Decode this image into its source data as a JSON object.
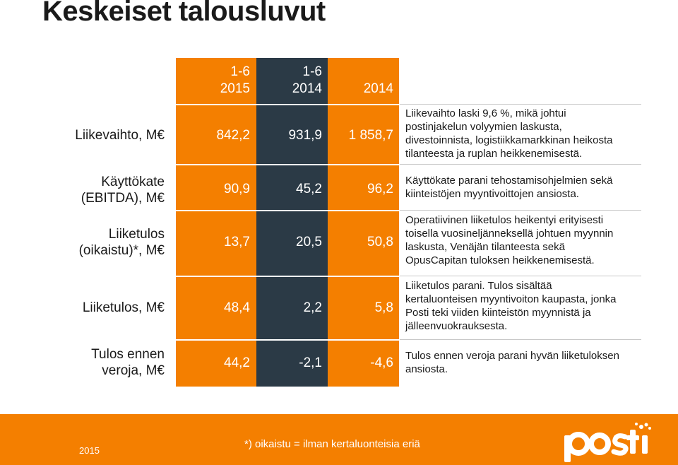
{
  "title": "Keskeiset talousluvut",
  "colors": {
    "orange": "#f47f00",
    "dark": "#2b3a46"
  },
  "columns": [
    {
      "line1": "1-6",
      "line2": "2015"
    },
    {
      "line1": "1-6",
      "line2": "2014"
    },
    {
      "line1": "",
      "line2": "2014"
    }
  ],
  "rows": [
    {
      "label": [
        "Liikevaihto, M€"
      ],
      "values": [
        "842,2",
        "931,9",
        "1 858,7"
      ],
      "desc": [
        "Liikevaihto laski 9,6 %, mikä johtui",
        "postinjakelun volyymien laskusta,",
        "divestoinnista, logistiikkamarkkinan heikosta",
        "tilanteesta ja ruplan heikkenemisestä."
      ]
    },
    {
      "label": [
        "Käyttökate",
        "(EBITDA), M€"
      ],
      "values": [
        "90,9",
        "45,2",
        "96,2"
      ],
      "desc": [
        "Käyttökate parani tehostamisohjelmien sekä",
        "kiinteistöjen myyntivoittojen ansiosta."
      ]
    },
    {
      "label": [
        "Liiketulos",
        "(oikaistu)*, M€"
      ],
      "values": [
        "13,7",
        "20,5",
        "50,8"
      ],
      "desc": [
        "Operatiivinen liiketulos heikentyi erityisesti",
        "toisella vuosineljänneksellä johtuen myynnin",
        "laskusta, Venäjän tilanteesta sekä",
        "OpusCapitan tuloksen heikkenemisestä."
      ]
    },
    {
      "label": [
        "Liiketulos, M€"
      ],
      "values": [
        "48,4",
        "2,2",
        "5,8"
      ],
      "desc": [
        "Liiketulos parani. Tulos sisältää",
        "kertaluonteisen myyntivoiton kaupasta, jonka",
        "Posti teki viiden kiinteistön myynnistä ja",
        "jälleenvuokrauksesta."
      ]
    },
    {
      "label": [
        "Tulos ennen",
        "veroja, M€"
      ],
      "values": [
        "44,2",
        "-2,1",
        "-4,6"
      ],
      "desc": [
        "Tulos ennen veroja parani hyvän liiketuloksen",
        "ansiosta."
      ]
    }
  ],
  "footer": {
    "year": "2015",
    "note": "*) oikaistu = ilman kertaluonteisia eriä",
    "logo": "posti"
  }
}
